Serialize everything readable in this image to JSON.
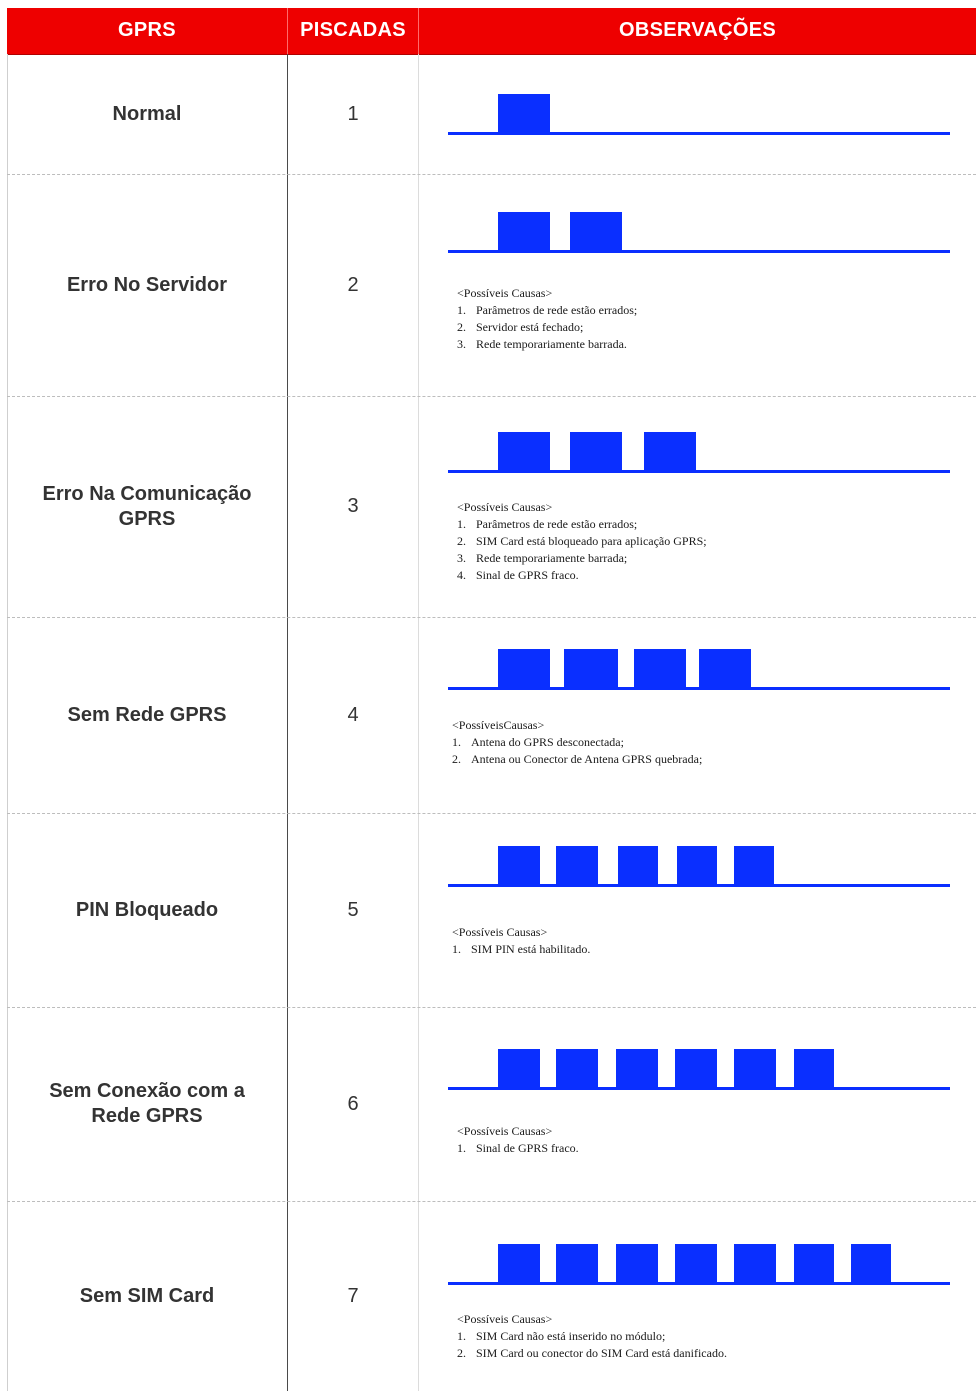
{
  "header": {
    "gprs": "GPRS",
    "blinks": "PISCADAS",
    "notes": "OBSERVAÇÕES"
  },
  "colors": {
    "header": "#ee0000",
    "signal": "#0a2fff"
  },
  "rows": [
    {
      "status": "Normal",
      "blinks": "1",
      "pulses": 1,
      "causes_title": "",
      "causes": []
    },
    {
      "status": "Erro No Servidor",
      "blinks": "2",
      "pulses": 2,
      "causes_title": "<Possíveis Causas>",
      "causes": [
        {
          "n": "1.",
          "text": "Parâmetros de rede estão errados;"
        },
        {
          "n": "2.",
          "text": "Servidor está fechado;"
        },
        {
          "n": "3.",
          "text": "Rede temporariamente barrada."
        }
      ]
    },
    {
      "status": "Erro Na Comunicação GPRS",
      "blinks": "3",
      "pulses": 3,
      "causes_title": "<Possíveis Causas>",
      "causes": [
        {
          "n": "1.",
          "text": "Parâmetros de rede estão errados;"
        },
        {
          "n": "2.",
          "text": "SIM Card está bloqueado para aplicação GPRS;"
        },
        {
          "n": "3.",
          "text": "Rede temporariamente barrada;"
        },
        {
          "n": "4.",
          "text": "Sinal de GPRS fraco."
        }
      ]
    },
    {
      "status": "Sem Rede GPRS",
      "blinks": "4",
      "pulses": 4,
      "causes_title": "<PossíveisCausas>",
      "causes": [
        {
          "n": "1.",
          "text": "Antena do GPRS desconectada;"
        },
        {
          "n": "2.",
          "text": "Antena ou Conector de Antena GPRS quebrada;"
        }
      ]
    },
    {
      "status": "PIN Bloqueado",
      "blinks": "5",
      "pulses": 5,
      "causes_title": "<Possíveis Causas>",
      "causes": [
        {
          "n": "1.",
          "text": "SIM PIN está habilitado."
        }
      ]
    },
    {
      "status": "Sem Conexão com a Rede GPRS",
      "blinks": "6",
      "pulses": 6,
      "causes_title": "<Possíveis Causas>",
      "causes": [
        {
          "n": "1.",
          "text": "Sinal de GPRS fraco."
        }
      ]
    },
    {
      "status": "Sem SIM Card",
      "blinks": "7",
      "pulses": 7,
      "causes_title": "<Possíveis Causas>",
      "causes": [
        {
          "n": "1.",
          "text": "SIM Card não está inserido no módulo;"
        },
        {
          "n": "2.",
          "text": "SIM Card ou conector do SIM Card está danificado."
        }
      ]
    }
  ]
}
